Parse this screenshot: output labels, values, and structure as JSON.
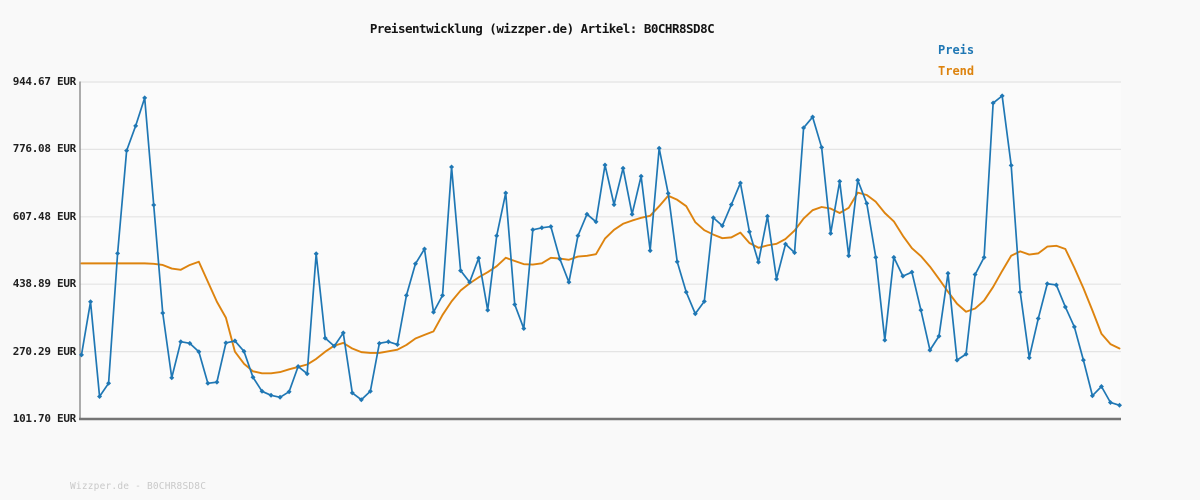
{
  "title": "Preisentwicklung (wizzper.de) Artikel: B0CHR8SD8C",
  "legend": {
    "preis": "Preis",
    "trend": "Trend"
  },
  "footer": "Wizzper.de - B0CHR8SD8C",
  "y_axis": {
    "ticks": [
      "944.67 EUR",
      "776.08 EUR",
      "607.48 EUR",
      "438.89 EUR",
      "270.29 EUR",
      "101.70 EUR"
    ],
    "tick_values": [
      944.67,
      776.08,
      607.48,
      438.89,
      270.29,
      101.7
    ]
  },
  "colors": {
    "preis": "#1f77b4",
    "trend": "#dd830e",
    "grid": "#e4e4e4",
    "axis_left": "#8a8a8a",
    "axis_bottom": "#757575",
    "plot_bg": "#fbfbfb",
    "page_bg": "#f9f9f9",
    "title_text": "#141414",
    "tick_text": "#1f1f1f",
    "footer_text": "#c9c9c9"
  },
  "chart_data": {
    "type": "line",
    "title": "Preisentwicklung (wizzper.de) Artikel: B0CHR8SD8C",
    "xlabel": "",
    "ylabel": "EUR",
    "x_tick_labels": "none",
    "ylim": [
      101.7,
      944.67
    ],
    "y_ticks": [
      944.67,
      776.08,
      607.48,
      438.89,
      270.29,
      101.7
    ],
    "grid": "horizontal",
    "legend_position": "top-right",
    "series": [
      {
        "name": "Preis",
        "color": "#1f77b4",
        "marker": "diamond",
        "values": [
          262,
          395,
          158,
          191,
          516,
          773,
          835,
          905,
          637,
          367,
          205,
          295,
          291,
          270,
          191,
          194,
          292,
          297,
          271,
          206,
          171,
          161,
          156,
          170,
          233,
          215,
          515,
          304,
          284,
          317,
          167,
          150,
          171,
          291,
          295,
          288,
          411,
          490,
          527,
          369,
          411,
          732,
          473,
          444,
          504,
          374,
          560,
          667,
          388,
          328,
          575,
          580,
          583,
          502,
          444,
          560,
          614,
          595,
          737,
          638,
          729,
          614,
          709,
          523,
          779,
          666,
          495,
          419,
          365,
          396,
          605,
          585,
          638,
          692,
          570,
          494,
          609,
          452,
          539,
          518,
          830,
          857,
          781,
          566,
          696,
          510,
          699,
          641,
          506,
          299,
          506,
          459,
          469,
          374,
          274,
          309,
          466,
          249,
          264,
          463,
          506,
          892,
          910,
          736,
          419,
          255,
          353,
          440,
          437,
          382,
          332,
          249,
          160,
          183,
          143,
          136
        ]
      },
      {
        "name": "Trend",
        "color": "#dd830e",
        "marker": "none",
        "values": [
          491,
          491,
          491,
          491,
          491,
          491,
          491,
          491,
          490,
          487,
          478,
          475,
          487,
          495,
          445,
          395,
          355,
          270,
          240,
          221,
          216,
          216,
          219,
          226,
          232,
          238,
          252,
          270,
          285,
          292,
          278,
          269,
          267,
          267,
          271,
          275,
          287,
          303,
          312,
          321,
          362,
          396,
          423,
          441,
          456,
          469,
          484,
          505,
          497,
          489,
          488,
          491,
          505,
          503,
          500,
          508,
          510,
          514,
          553,
          575,
          590,
          598,
          605,
          610,
          634,
          660,
          650,
          634,
          594,
          574,
          563,
          554,
          556,
          568,
          542,
          530,
          536,
          540,
          552,
          573,
          603,
          624,
          632,
          628,
          617,
          630,
          668,
          662,
          645,
          617,
          596,
          560,
          529,
          509,
          483,
          452,
          420,
          390,
          370,
          378,
          398,
          432,
          472,
          510,
          521,
          513,
          516,
          533,
          535,
          527,
          480,
          429,
          373,
          315,
          289,
          278
        ]
      }
    ]
  }
}
